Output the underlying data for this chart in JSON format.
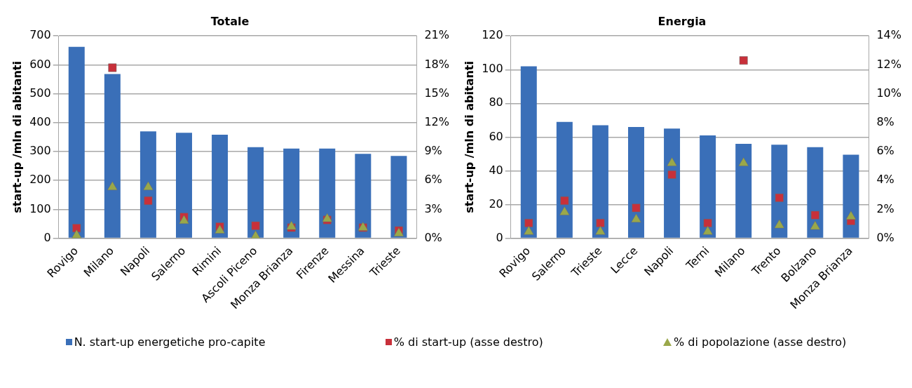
{
  "chart_data": [
    {
      "type": "bar",
      "title": "Totale",
      "ylabel": "start-up /mln di abitanti",
      "categories": [
        "Rovigo",
        "Milano",
        "Napoli",
        "Salerno",
        "Rimini",
        "Ascoli Piceno",
        "Monza Brianza",
        "Firenze",
        "Messina",
        "Trieste"
      ],
      "series": [
        {
          "name": "N. start-up energetiche pro-capite",
          "color": "#3a6fb8",
          "values": [
            662,
            568,
            370,
            365,
            358,
            315,
            310,
            310,
            292,
            285
          ]
        },
        {
          "name": "% di start-up (asse destro)",
          "type": "scatter",
          "marker": "square",
          "axis": "y2",
          "color": "#c8303a",
          "values": [
            1.05,
            17.7,
            3.9,
            2.2,
            1.2,
            1.3,
            1.1,
            1.9,
            1.1,
            0.8
          ]
        },
        {
          "name": "% di popolazione (asse destro)",
          "type": "scatter",
          "marker": "triangle",
          "axis": "y2",
          "color": "#9aa84a",
          "values": [
            0.3,
            5.3,
            5.3,
            1.8,
            0.8,
            0.2,
            1.2,
            2.0,
            1.1,
            0.5
          ]
        }
      ],
      "ylim": [
        0,
        700
      ],
      "yticks": [
        0,
        100,
        200,
        300,
        400,
        500,
        600,
        700
      ],
      "y2lim": [
        0,
        21
      ],
      "y2ticks": [
        {
          "value": 0,
          "label": "0%"
        },
        {
          "value": 3,
          "label": "3%"
        },
        {
          "value": 6,
          "label": "6%"
        },
        {
          "value": 9,
          "label": "9%"
        },
        {
          "value": 12,
          "label": "12%"
        },
        {
          "value": 15,
          "label": "15%"
        },
        {
          "value": 18,
          "label": "18%"
        },
        {
          "value": 21,
          "label": "21%"
        }
      ],
      "grid": "y",
      "legend": "bottom"
    },
    {
      "type": "bar",
      "title": "Energia",
      "ylabel": "start-up /mln di abitanti",
      "categories": [
        "Rovigo",
        "Salerno",
        "Trieste",
        "Lecce",
        "Napoli",
        "Terni",
        "Milano",
        "Trento",
        "Bolzano",
        "Monza Brianza"
      ],
      "series": [
        {
          "color": "#3a6fb8",
          "values": [
            102,
            69,
            67,
            66,
            65,
            61,
            56,
            55.5,
            54,
            49.5
          ]
        },
        {
          "type": "scatter",
          "marker": "square",
          "axis": "y2",
          "color": "#c8303a",
          "values": [
            1.05,
            2.6,
            1.05,
            2.1,
            4.4,
            1.05,
            12.3,
            2.8,
            1.6,
            1.2
          ]
        },
        {
          "type": "scatter",
          "marker": "triangle",
          "axis": "y2",
          "color": "#9aa84a",
          "values": [
            0.45,
            1.8,
            0.45,
            1.3,
            5.2,
            0.45,
            5.2,
            0.9,
            0.8,
            1.5
          ]
        }
      ],
      "ylim": [
        0,
        120
      ],
      "yticks": [
        0,
        20,
        40,
        60,
        80,
        100,
        120
      ],
      "y2lim": [
        0,
        14
      ],
      "y2ticks": [
        {
          "value": 0,
          "label": "0%"
        },
        {
          "value": 2,
          "label": "2%"
        },
        {
          "value": 4,
          "label": "4%"
        },
        {
          "value": 6,
          "label": "6%"
        },
        {
          "value": 8,
          "label": "8%"
        },
        {
          "value": 10,
          "label": "10%"
        },
        {
          "value": 12,
          "label": "12%"
        },
        {
          "value": 14,
          "label": "14%"
        }
      ],
      "grid": "y"
    }
  ]
}
